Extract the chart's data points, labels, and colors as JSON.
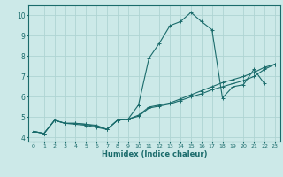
{
  "xlabel": "Humidex (Indice chaleur)",
  "xlim": [
    -0.5,
    23.5
  ],
  "ylim": [
    3.8,
    10.5
  ],
  "yticks": [
    4,
    5,
    6,
    7,
    8,
    9,
    10
  ],
  "xticks": [
    0,
    1,
    2,
    3,
    4,
    5,
    6,
    7,
    8,
    9,
    10,
    11,
    12,
    13,
    14,
    15,
    16,
    17,
    18,
    19,
    20,
    21,
    22,
    23
  ],
  "bg_color": "#cce9e8",
  "grid_color": "#afd4d3",
  "line_color": "#1a6b6b",
  "lines": [
    {
      "x": [
        0,
        1,
        2,
        3,
        4,
        5,
        6,
        7,
        8,
        9,
        10,
        11,
        12,
        13,
        14,
        15,
        16,
        17,
        18,
        19,
        20,
        21,
        22
      ],
      "y": [
        4.3,
        4.2,
        4.85,
        4.7,
        4.7,
        4.65,
        4.6,
        4.4,
        4.85,
        4.9,
        5.6,
        7.9,
        8.65,
        9.5,
        9.7,
        10.15,
        9.7,
        9.3,
        5.95,
        6.5,
        6.6,
        7.35,
        6.65
      ]
    },
    {
      "x": [
        0,
        1,
        2,
        3,
        4,
        5,
        6,
        7,
        8,
        9,
        10,
        11,
        12,
        13,
        14,
        15,
        16,
        17,
        18,
        19,
        20,
        21,
        22,
        23
      ],
      "y": [
        4.3,
        4.2,
        4.85,
        4.7,
        4.7,
        4.65,
        4.55,
        4.4,
        4.85,
        4.9,
        5.05,
        5.45,
        5.55,
        5.65,
        5.82,
        6.0,
        6.15,
        6.35,
        6.5,
        6.65,
        6.8,
        7.0,
        7.35,
        7.6
      ]
    },
    {
      "x": [
        0,
        1,
        2,
        3,
        4,
        5,
        6,
        7,
        8,
        9,
        10,
        11,
        12,
        13,
        14,
        15,
        16,
        17,
        18,
        19,
        20,
        21,
        22,
        23
      ],
      "y": [
        4.3,
        4.2,
        4.85,
        4.7,
        4.65,
        4.6,
        4.5,
        4.4,
        4.85,
        4.9,
        5.1,
        5.5,
        5.6,
        5.7,
        5.9,
        6.1,
        6.3,
        6.5,
        6.7,
        6.85,
        7.0,
        7.2,
        7.45,
        7.6
      ]
    }
  ]
}
